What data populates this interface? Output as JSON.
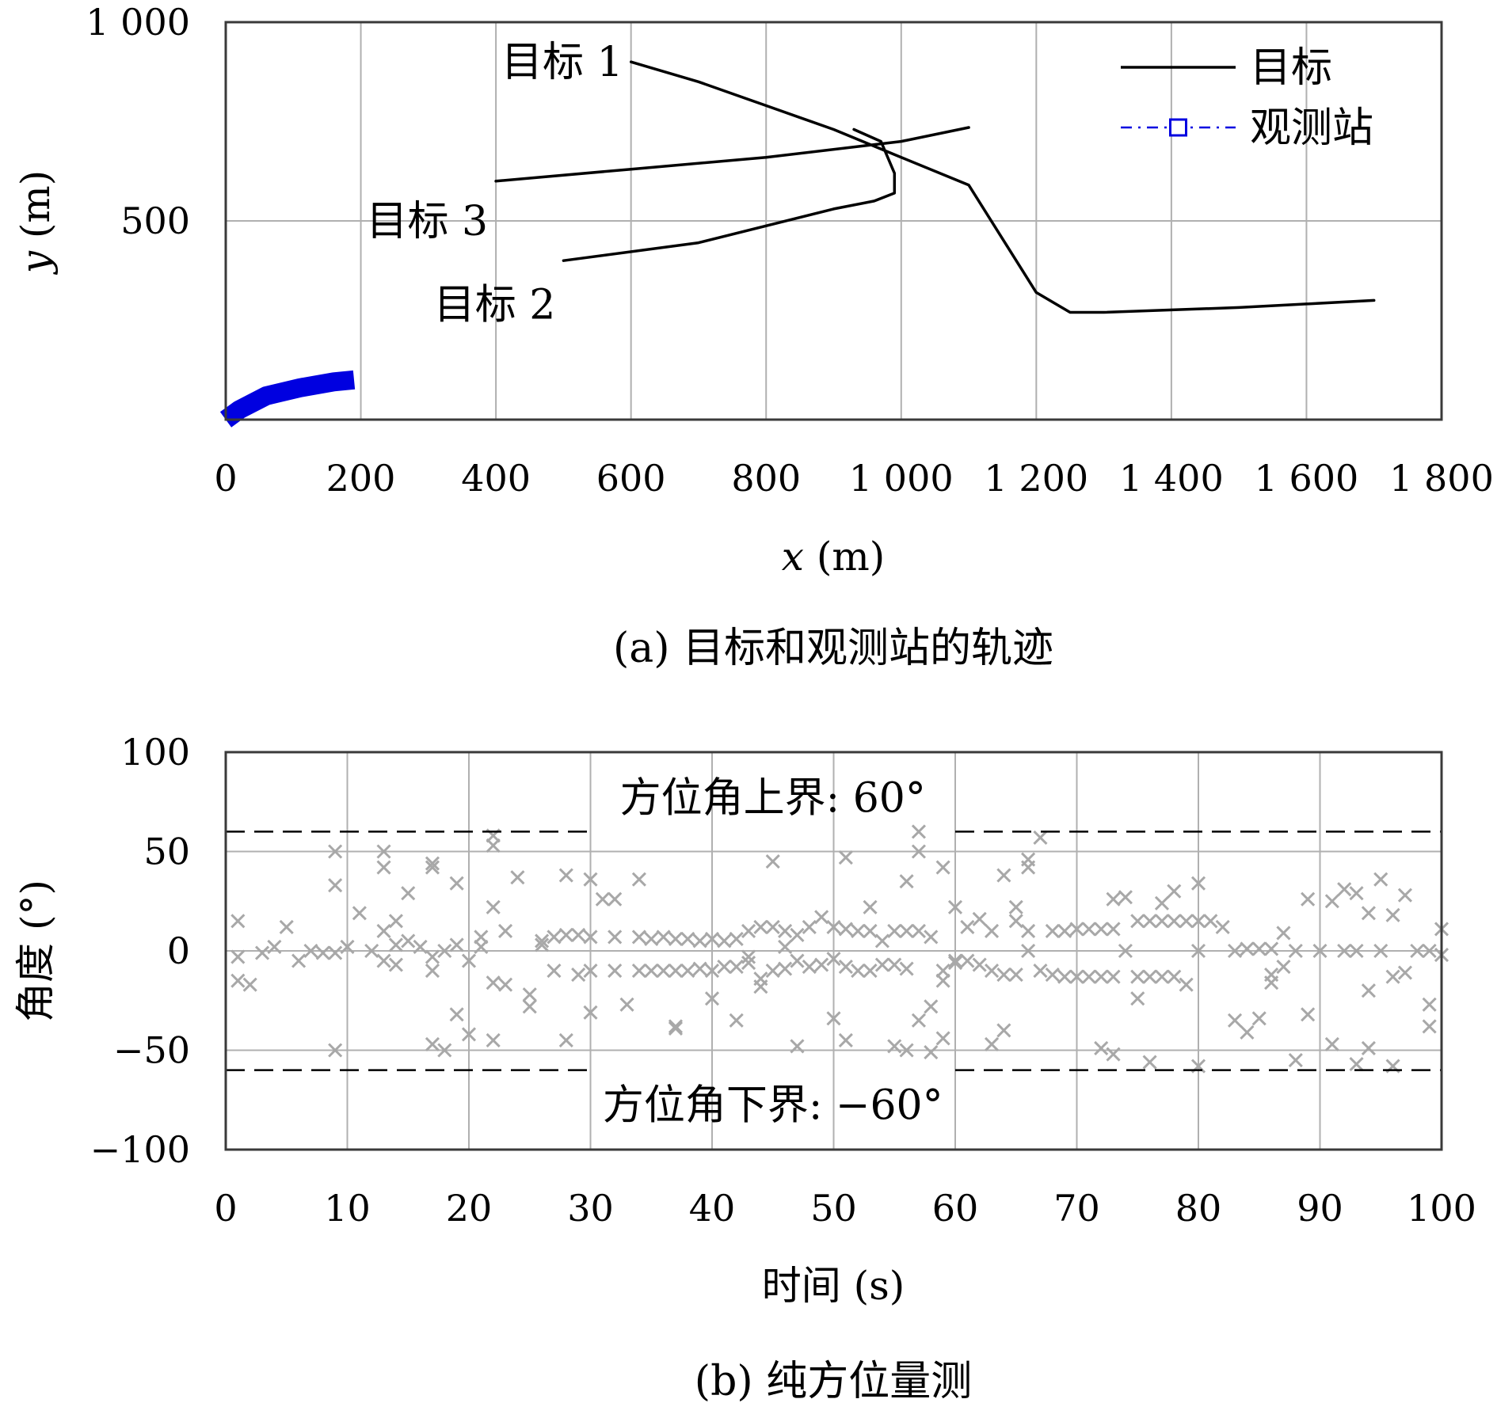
{
  "chart_data": [
    {
      "id": "a",
      "type": "line",
      "caption": "(a) 目标和观测站的轨迹",
      "xlabel_var": "x",
      "xlabel_unit": " (m)",
      "ylabel_var": "y",
      "ylabel_unit": " (m)",
      "xlim": [
        0,
        1800
      ],
      "ylim": [
        0,
        1000
      ],
      "grid": true,
      "xticks": [
        0,
        200,
        400,
        600,
        800,
        1000,
        1200,
        1400,
        1600,
        1800
      ],
      "xtick_labels": [
        "0",
        "200",
        "400",
        "600",
        "800",
        "1 000",
        "1 200",
        "1 400",
        "1 600",
        "1 800"
      ],
      "yticks": [
        500,
        1000
      ],
      "ytick_labels": [
        "500",
        "1 000"
      ],
      "legend": {
        "position": "top-right",
        "entries": [
          {
            "label": "目标",
            "style": "solid",
            "color": "#000000"
          },
          {
            "label": "观测站",
            "style": "dashdot-square",
            "color": "#0000e0"
          }
        ]
      },
      "series": [
        {
          "name": "目标 1",
          "color": "#000000",
          "points": [
            [
              600,
              900
            ],
            [
              700,
              850
            ],
            [
              800,
              790
            ],
            [
              900,
              730
            ],
            [
              1000,
              660
            ],
            [
              1100,
              590
            ],
            [
              1200,
              320
            ],
            [
              1250,
              270
            ],
            [
              1300,
              270
            ],
            [
              1500,
              282
            ],
            [
              1700,
              300
            ]
          ]
        },
        {
          "name": "目标 2",
          "color": "#000000",
          "points": [
            [
              500,
              400
            ],
            [
              700,
              445
            ],
            [
              900,
              530
            ],
            [
              960,
              550
            ],
            [
              990,
              570
            ],
            [
              990,
              620
            ],
            [
              970,
              700
            ],
            [
              930,
              730
            ]
          ]
        },
        {
          "name": "目标 3",
          "color": "#000000",
          "points": [
            [
              400,
              600
            ],
            [
              600,
              630
            ],
            [
              800,
              660
            ],
            [
              1000,
              700
            ],
            [
              1100,
              735
            ]
          ]
        },
        {
          "name": "观测站",
          "color": "#0000e0",
          "style": "thick",
          "points": [
            [
              0,
              0
            ],
            [
              20,
              25
            ],
            [
              60,
              60
            ],
            [
              110,
              80
            ],
            [
              160,
              95
            ],
            [
              190,
              100
            ]
          ]
        }
      ],
      "annotations": [
        {
          "text": "目标 1",
          "at": [
            600,
            900
          ]
        },
        {
          "text": "目标 2",
          "at": [
            500,
            290
          ]
        },
        {
          "text": "目标 3",
          "at": [
            400,
            500
          ]
        }
      ]
    },
    {
      "id": "b",
      "type": "scatter",
      "caption": "(b) 纯方位量测",
      "xlabel": "时间 (s)",
      "ylabel": "角度 (°)",
      "xlim": [
        0,
        100
      ],
      "ylim": [
        -100,
        100
      ],
      "grid": true,
      "xticks": [
        0,
        10,
        20,
        30,
        40,
        50,
        60,
        70,
        80,
        90,
        100
      ],
      "xtick_labels": [
        "0",
        "10",
        "20",
        "30",
        "40",
        "50",
        "60",
        "70",
        "80",
        "90",
        "100"
      ],
      "yticks": [
        -100,
        -50,
        0,
        50,
        100
      ],
      "ytick_labels": [
        "−100",
        "−50",
        "0",
        "50",
        "100"
      ],
      "bounds": [
        {
          "value": 60,
          "label": "方位角上界: 60°"
        },
        {
          "value": -60,
          "label": "方位角下界: −60°"
        }
      ],
      "marker_color": "#a8a8a8",
      "points": [
        [
          1,
          15
        ],
        [
          1,
          -3
        ],
        [
          1,
          -15
        ],
        [
          2,
          -17
        ],
        [
          3,
          -1
        ],
        [
          4,
          2
        ],
        [
          5,
          12
        ],
        [
          6,
          -5
        ],
        [
          7,
          0
        ],
        [
          8,
          -1
        ],
        [
          9,
          -1
        ],
        [
          9,
          50
        ],
        [
          9,
          33
        ],
        [
          9,
          -50
        ],
        [
          10,
          2
        ],
        [
          11,
          19
        ],
        [
          12,
          0
        ],
        [
          13,
          50
        ],
        [
          13,
          42
        ],
        [
          13,
          10
        ],
        [
          13,
          -5
        ],
        [
          14,
          15
        ],
        [
          14,
          -7
        ],
        [
          14,
          3
        ],
        [
          15,
          29
        ],
        [
          15,
          5
        ],
        [
          16,
          2
        ],
        [
          17,
          44
        ],
        [
          17,
          42
        ],
        [
          17,
          -47
        ],
        [
          17,
          -10
        ],
        [
          17,
          -3
        ],
        [
          18,
          -50
        ],
        [
          18,
          0
        ],
        [
          19,
          34
        ],
        [
          19,
          -32
        ],
        [
          19,
          3
        ],
        [
          20,
          -42
        ],
        [
          20,
          -5
        ],
        [
          21,
          2
        ],
        [
          21,
          7
        ],
        [
          22,
          53
        ],
        [
          22,
          58
        ],
        [
          22,
          22
        ],
        [
          22,
          -16
        ],
        [
          22,
          -45
        ],
        [
          23,
          -17
        ],
        [
          23,
          10
        ],
        [
          24,
          37
        ],
        [
          25,
          -22
        ],
        [
          25,
          -28
        ],
        [
          26,
          3
        ],
        [
          26,
          5
        ],
        [
          27,
          -10
        ],
        [
          27,
          7
        ],
        [
          28,
          38
        ],
        [
          28,
          -45
        ],
        [
          28,
          8
        ],
        [
          29,
          -12
        ],
        [
          29,
          8
        ],
        [
          30,
          36
        ],
        [
          30,
          -31
        ],
        [
          30,
          7
        ],
        [
          30,
          -10
        ],
        [
          31,
          26
        ],
        [
          32,
          26
        ],
        [
          32,
          7
        ],
        [
          32,
          -10
        ],
        [
          33,
          -27
        ],
        [
          34,
          36
        ],
        [
          34,
          7
        ],
        [
          34,
          -10
        ],
        [
          35,
          6
        ],
        [
          35,
          -10
        ],
        [
          36,
          7
        ],
        [
          36,
          -10
        ],
        [
          37,
          -38
        ],
        [
          37,
          -39
        ],
        [
          37,
          6
        ],
        [
          37,
          -10
        ],
        [
          38,
          6
        ],
        [
          38,
          -10
        ],
        [
          39,
          5
        ],
        [
          39,
          -9
        ],
        [
          40,
          -24
        ],
        [
          40,
          6
        ],
        [
          40,
          -10
        ],
        [
          41,
          5
        ],
        [
          41,
          -8
        ],
        [
          42,
          -35
        ],
        [
          42,
          6
        ],
        [
          42,
          -8
        ],
        [
          43,
          10
        ],
        [
          43,
          -6
        ],
        [
          43,
          -3
        ],
        [
          44,
          12
        ],
        [
          44,
          -14
        ],
        [
          44,
          -18
        ],
        [
          45,
          12
        ],
        [
          45,
          -10
        ],
        [
          45,
          45
        ],
        [
          46,
          2
        ],
        [
          46,
          10
        ],
        [
          46,
          -9
        ],
        [
          47,
          -48
        ],
        [
          47,
          8
        ],
        [
          47,
          -5
        ],
        [
          48,
          12
        ],
        [
          48,
          -8
        ],
        [
          49,
          17
        ],
        [
          49,
          -7
        ],
        [
          50,
          -34
        ],
        [
          50,
          12
        ],
        [
          50,
          -4
        ],
        [
          51,
          47
        ],
        [
          51,
          -45
        ],
        [
          51,
          11
        ],
        [
          51,
          -8
        ],
        [
          52,
          10
        ],
        [
          52,
          -10
        ],
        [
          53,
          22
        ],
        [
          53,
          10
        ],
        [
          53,
          -10
        ],
        [
          54,
          5
        ],
        [
          54,
          -7
        ],
        [
          55,
          -48
        ],
        [
          55,
          10
        ],
        [
          55,
          -7
        ],
        [
          56,
          35
        ],
        [
          56,
          -50
        ],
        [
          56,
          10
        ],
        [
          56,
          -9
        ],
        [
          57,
          60
        ],
        [
          57,
          50
        ],
        [
          57,
          -35
        ],
        [
          57,
          10
        ],
        [
          58,
          -28
        ],
        [
          58,
          -51
        ],
        [
          58,
          7
        ],
        [
          59,
          42
        ],
        [
          59,
          -44
        ],
        [
          59,
          -15
        ],
        [
          59,
          -10
        ],
        [
          60,
          22
        ],
        [
          60,
          -6
        ],
        [
          60,
          -5
        ],
        [
          61,
          12
        ],
        [
          61,
          -5
        ],
        [
          62,
          16
        ],
        [
          62,
          -7
        ],
        [
          63,
          -47
        ],
        [
          63,
          10
        ],
        [
          63,
          -10
        ],
        [
          64,
          38
        ],
        [
          64,
          -40
        ],
        [
          64,
          -12
        ],
        [
          65,
          22
        ],
        [
          65,
          15
        ],
        [
          65,
          -12
        ],
        [
          66,
          46
        ],
        [
          66,
          42
        ],
        [
          66,
          0
        ],
        [
          66,
          10
        ],
        [
          67,
          57
        ],
        [
          67,
          -10
        ],
        [
          68,
          10
        ],
        [
          68,
          -12
        ],
        [
          69,
          10
        ],
        [
          69,
          -13
        ],
        [
          70,
          11
        ],
        [
          70,
          -13
        ],
        [
          71,
          11
        ],
        [
          71,
          -13
        ],
        [
          72,
          11
        ],
        [
          72,
          -49
        ],
        [
          72,
          -13
        ],
        [
          73,
          26
        ],
        [
          73,
          11
        ],
        [
          73,
          -52
        ],
        [
          73,
          -13
        ],
        [
          74,
          27
        ],
        [
          74,
          0
        ],
        [
          75,
          15
        ],
        [
          75,
          -24
        ],
        [
          75,
          -13
        ],
        [
          76,
          15
        ],
        [
          76,
          -56
        ],
        [
          76,
          -13
        ],
        [
          77,
          24
        ],
        [
          77,
          15
        ],
        [
          77,
          -13
        ],
        [
          78,
          30
        ],
        [
          78,
          15
        ],
        [
          78,
          -13
        ],
        [
          79,
          15
        ],
        [
          79,
          -17
        ],
        [
          80,
          34
        ],
        [
          80,
          15
        ],
        [
          80,
          0
        ],
        [
          80,
          -58
        ],
        [
          81,
          15
        ],
        [
          82,
          12
        ],
        [
          83,
          0
        ],
        [
          83,
          -35
        ],
        [
          84,
          -41
        ],
        [
          84,
          1
        ],
        [
          85,
          -34
        ],
        [
          85,
          1
        ],
        [
          86,
          -12
        ],
        [
          86,
          -16
        ],
        [
          86,
          1
        ],
        [
          87,
          9
        ],
        [
          87,
          -8
        ],
        [
          88,
          0
        ],
        [
          88,
          -55
        ],
        [
          89,
          26
        ],
        [
          89,
          -32
        ],
        [
          90,
          0
        ],
        [
          91,
          25
        ],
        [
          91,
          -47
        ],
        [
          92,
          31
        ],
        [
          92,
          0
        ],
        [
          93,
          29
        ],
        [
          93,
          -57
        ],
        [
          93,
          0
        ],
        [
          94,
          19
        ],
        [
          94,
          -49
        ],
        [
          94,
          -20
        ],
        [
          95,
          36
        ],
        [
          95,
          0
        ],
        [
          96,
          18
        ],
        [
          96,
          -58
        ],
        [
          96,
          -13
        ],
        [
          97,
          28
        ],
        [
          97,
          -11
        ],
        [
          98,
          0
        ],
        [
          99,
          0
        ],
        [
          99,
          -27
        ],
        [
          99,
          -38
        ],
        [
          100,
          11
        ],
        [
          100,
          -2
        ]
      ]
    }
  ]
}
